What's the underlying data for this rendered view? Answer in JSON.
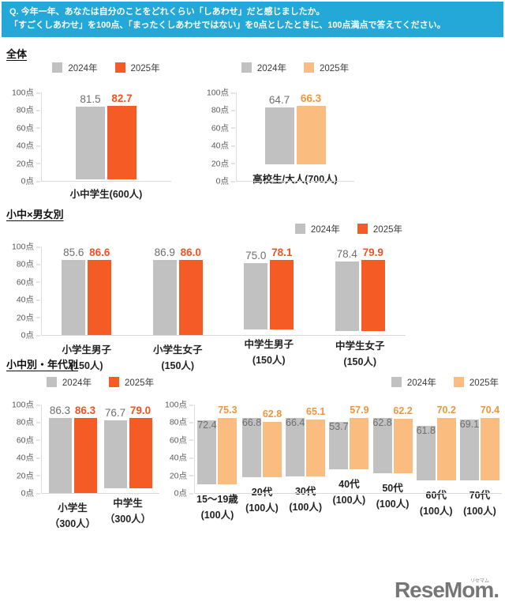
{
  "header": {
    "line1": "Q. 今年一年、あなたは自分のことをどれくらい「しあわせ」だと感じましたか。",
    "line2": "「すごくしあわせ」を100点、「まったくしあわせではない」を0点としたときに、100点満点で答えてください。"
  },
  "sections": {
    "s1_title": "全体",
    "s2_title": "小中×男女別",
    "s3_title": "小中別・年代別"
  },
  "colors": {
    "banner_bg": "#24A8D8",
    "bar_2024_gray": "#C1C1C1",
    "bar_2025_orange": "#F55B25",
    "bar_2025_light_orange": "#FBBC80",
    "label_2024_gray": "#6E6E6E",
    "label_2025_orange": "#F05322",
    "label_2025_light_orange": "#EF953B",
    "axis_line": "#D9D9D9",
    "axis_text": "#595959"
  },
  "chart_data": [
    {
      "id": "zentai-shochu",
      "type": "bar",
      "title": "全体 - 小中学生",
      "categories": [
        [
          "小中学生(600人)"
        ]
      ],
      "series": [
        {
          "name": "2024年",
          "values": [
            81.5
          ]
        },
        {
          "name": "2025年",
          "values": [
            82.7
          ]
        }
      ],
      "palette": "orange",
      "ylim": [
        0,
        100
      ],
      "y_ticks": [
        "100点",
        "80点",
        "60点",
        "40点",
        "20点",
        "0点"
      ],
      "grid": false,
      "legend_position": "top-center"
    },
    {
      "id": "zentai-otona",
      "type": "bar",
      "title": "全体 - 高校生/大人",
      "categories": [
        [
          "高校生/大人(700人)"
        ]
      ],
      "series": [
        {
          "name": "2024年",
          "values": [
            64.7
          ]
        },
        {
          "name": "2025年",
          "values": [
            66.3
          ]
        }
      ],
      "palette": "light_orange",
      "ylim": [
        0,
        100
      ],
      "y_ticks": [
        "100点",
        "80点",
        "60点",
        "40点",
        "20点",
        "0点"
      ],
      "grid": false,
      "legend_position": "top-center"
    },
    {
      "id": "danjo",
      "type": "bar",
      "title": "小中×男女別",
      "categories": [
        [
          "小学生男子",
          "(150人)"
        ],
        [
          "小学生女子",
          "(150人)"
        ],
        [
          "中学生男子",
          "(150人)"
        ],
        [
          "中学生女子",
          "(150人)"
        ]
      ],
      "series": [
        {
          "name": "2024年",
          "values": [
            85.6,
            86.9,
            75.0,
            78.4
          ]
        },
        {
          "name": "2025年",
          "values": [
            86.6,
            86.0,
            78.1,
            79.9
          ]
        }
      ],
      "palette": "orange",
      "ylim": [
        0,
        100
      ],
      "y_ticks": [
        "100点",
        "80点",
        "60点",
        "40点",
        "20点",
        "0点"
      ],
      "grid": false,
      "legend_position": "top-right"
    },
    {
      "id": "shochu-betsu",
      "type": "bar",
      "title": "小中別",
      "categories": [
        [
          "小学生",
          "（300人）"
        ],
        [
          "中学生",
          "（300人）"
        ]
      ],
      "series": [
        {
          "name": "2024年",
          "values": [
            86.3,
            76.7
          ]
        },
        {
          "name": "2025年",
          "values": [
            86.3,
            79.0
          ]
        }
      ],
      "palette": "orange",
      "ylim": [
        0,
        100
      ],
      "y_ticks": [
        "100点",
        "80点",
        "60点",
        "40点",
        "20点",
        "0点"
      ],
      "grid": false,
      "legend_position": "top-center"
    },
    {
      "id": "nendai-betsu",
      "type": "bar",
      "title": "年代別",
      "categories": [
        [
          "15〜19歳",
          "(100人)"
        ],
        [
          "20代",
          "(100人)"
        ],
        [
          "30代",
          "(100人)"
        ],
        [
          "40代",
          "(100人)"
        ],
        [
          "50代",
          "(100人)"
        ],
        [
          "60代",
          "(100人)"
        ],
        [
          "70代",
          "(100人)"
        ]
      ],
      "series": [
        {
          "name": "2024年",
          "values": [
            72.4,
            66.8,
            66.4,
            53.7,
            62.8,
            61.8,
            69.1
          ]
        },
        {
          "name": "2025年",
          "values": [
            75.3,
            62.8,
            65.1,
            57.9,
            62.2,
            70.2,
            70.4
          ]
        }
      ],
      "palette": "light_orange",
      "ylim": [
        0,
        100
      ],
      "y_ticks": [
        "100点",
        "80点",
        "60点",
        "40点",
        "20点",
        "0点"
      ],
      "grid": false,
      "legend_position": "top-right"
    }
  ],
  "watermark": {
    "text": "ReseMom.",
    "small": "リセマム"
  }
}
